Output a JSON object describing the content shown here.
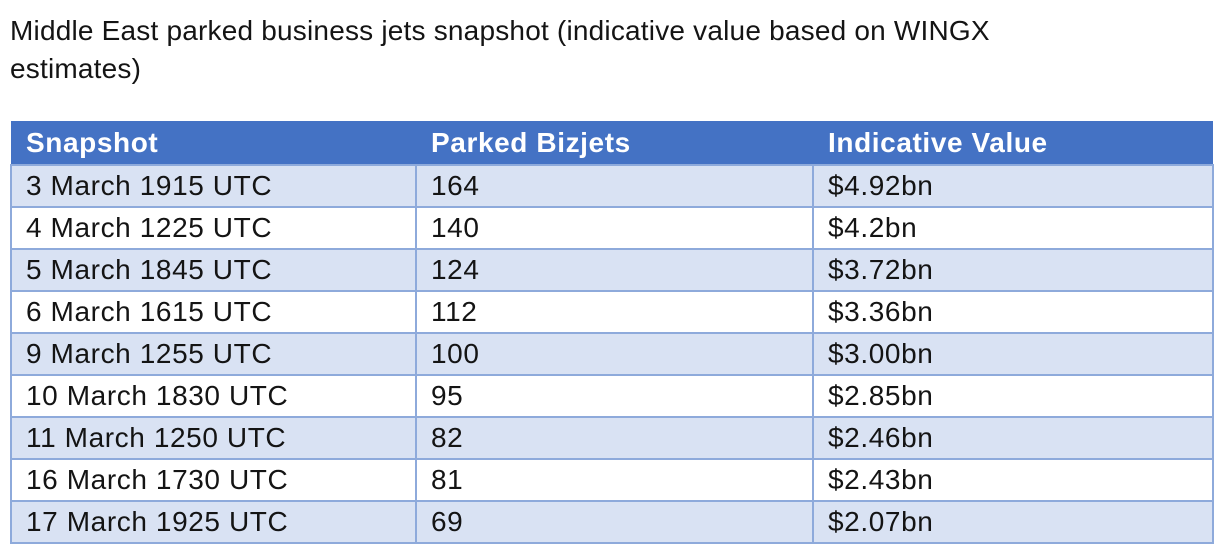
{
  "title": "Middle East parked business jets snapshot (indicative value based on WINGX estimates)",
  "table": {
    "columns": [
      "Snapshot",
      "Parked Bizjets",
      "Indicative Value"
    ],
    "rows": [
      {
        "snapshot": "3 March 1915 UTC",
        "parked_bizjets": "164",
        "indicative_value": "$4.92bn"
      },
      {
        "snapshot": "4 March 1225 UTC",
        "parked_bizjets": "140",
        "indicative_value": "$4.2bn"
      },
      {
        "snapshot": "5 March 1845 UTC",
        "parked_bizjets": "124",
        "indicative_value": "$3.72bn"
      },
      {
        "snapshot": "6 March 1615 UTC",
        "parked_bizjets": "112",
        "indicative_value": "$3.36bn"
      },
      {
        "snapshot": "9 March 1255 UTC",
        "parked_bizjets": "100",
        "indicative_value": "$3.00bn"
      },
      {
        "snapshot": "10 March 1830 UTC",
        "parked_bizjets": "95",
        "indicative_value": "$2.85bn"
      },
      {
        "snapshot": "11 March 1250 UTC",
        "parked_bizjets": "82",
        "indicative_value": "$2.46bn"
      },
      {
        "snapshot": "16 March 1730 UTC",
        "parked_bizjets": "81",
        "indicative_value": "$2.43bn"
      },
      {
        "snapshot": "17 March 1925 UTC",
        "parked_bizjets": "69",
        "indicative_value": "$2.07bn"
      }
    ]
  },
  "colors": {
    "header_bg": "#4472C4",
    "header_text": "#FFFFFF",
    "row_shaded_bg": "#D9E2F3",
    "row_plain_bg": "#FFFFFF",
    "grid_border": "#8EAADB",
    "body_text": "#141414"
  }
}
